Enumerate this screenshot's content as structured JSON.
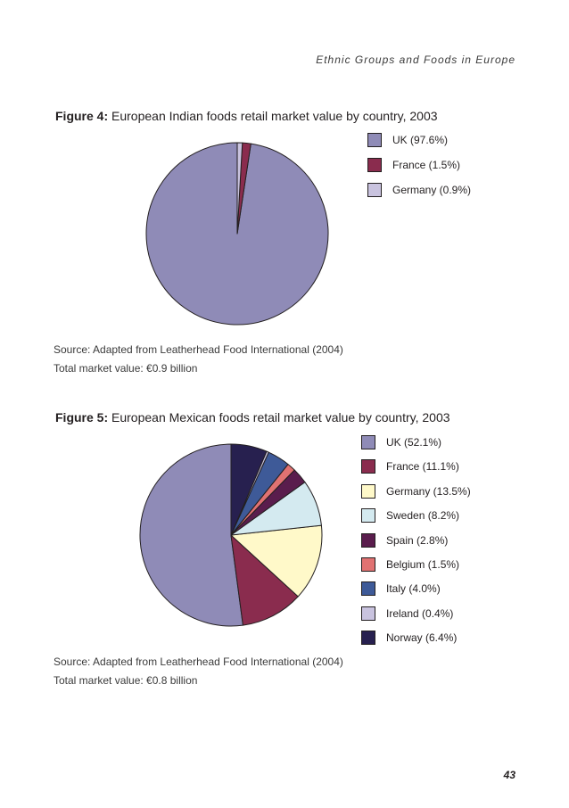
{
  "header": {
    "running_title": "Ethnic Groups and Foods in Europe"
  },
  "figure4": {
    "label": "Figure 4:",
    "caption": "European Indian foods retail market value by country, 2003",
    "source": "Source: Adapted from Leatherhead Food International (2004)",
    "total": "Total market value: €0.9 billion"
  },
  "figure5": {
    "label": "Figure 5:",
    "caption": "European Mexican foods retail market value by country, 2003",
    "source": "Source: Adapted from Leatherhead Food International (2004)",
    "total": "Total market value: €0.8 billion"
  },
  "chart_data": [
    {
      "type": "pie",
      "title": "European Indian foods retail market value by country, 2003",
      "slices": [
        {
          "name": "UK",
          "value": 97.6,
          "label": "UK (97.6%)",
          "color": "#8f8bb7"
        },
        {
          "name": "France",
          "value": 1.5,
          "label": "France (1.5%)",
          "color": "#8a2c4e"
        },
        {
          "name": "Germany",
          "value": 0.9,
          "label": "Germany (0.9%)",
          "color": "#c9c3df"
        }
      ],
      "legend_position": "top-right"
    },
    {
      "type": "pie",
      "title": "European Mexican foods retail market value by country, 2003",
      "slices": [
        {
          "name": "UK",
          "value": 52.1,
          "label": "UK (52.1%)",
          "color": "#8f8bb7"
        },
        {
          "name": "France",
          "value": 11.1,
          "label": "France (11.1%)",
          "color": "#8a2c4e"
        },
        {
          "name": "Germany",
          "value": 13.5,
          "label": "Germany (13.5%)",
          "color": "#fff9c9"
        },
        {
          "name": "Sweden",
          "value": 8.2,
          "label": "Sweden (8.2%)",
          "color": "#d4eaf0"
        },
        {
          "name": "Spain",
          "value": 2.8,
          "label": "Spain (2.8%)",
          "color": "#5a1d4d"
        },
        {
          "name": "Belgium",
          "value": 1.5,
          "label": "Belgium (1.5%)",
          "color": "#e17272"
        },
        {
          "name": "Italy",
          "value": 4.0,
          "label": "Italy (4.0%)",
          "color": "#3e5a98"
        },
        {
          "name": "Ireland",
          "value": 0.4,
          "label": "Ireland (0.4%)",
          "color": "#c9c3df"
        },
        {
          "name": "Norway",
          "value": 6.4,
          "label": "Norway (6.4%)",
          "color": "#27204f"
        }
      ],
      "legend_position": "right"
    }
  ],
  "footer": {
    "page_number": "43"
  }
}
